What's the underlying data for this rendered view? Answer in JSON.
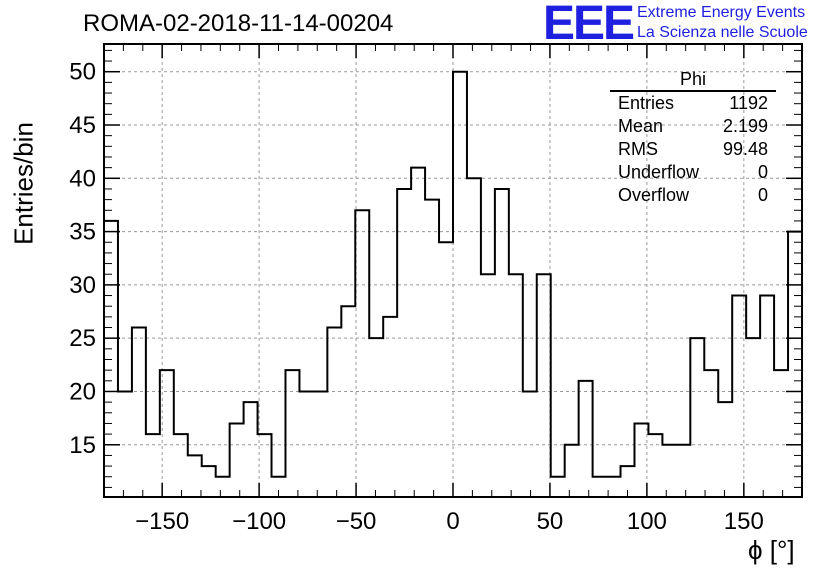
{
  "header": {
    "title": "ROMA-02-2018-11-14-00204",
    "logo_text": "EEE",
    "logo_line1": "Extreme Energy Events",
    "logo_line2": "La Scienza nelle Scuole",
    "logo_color": "#1f1fe0"
  },
  "stats_box": {
    "title": "Phi",
    "rows": [
      {
        "label": "Entries",
        "value": "1192"
      },
      {
        "label": "Mean",
        "value": "2.199"
      },
      {
        "label": "RMS",
        "value": "99.48"
      },
      {
        "label": "Underflow",
        "value": "0"
      },
      {
        "label": "Overflow",
        "value": "0"
      }
    ]
  },
  "chart_data": {
    "type": "histogram",
    "xlabel": "ϕ [°]",
    "ylabel": "Entries/bin",
    "xlim": [
      -180,
      180
    ],
    "ylim": [
      10.1,
      52.6
    ],
    "bin_width": 7.2,
    "bin_edges_start": -180,
    "values": [
      36,
      20,
      26,
      16,
      22,
      16,
      14,
      13,
      12,
      17,
      19,
      16,
      12,
      22,
      20,
      20,
      26,
      28,
      37,
      25,
      27,
      39,
      41,
      38,
      34,
      50,
      40,
      31,
      39,
      31,
      20,
      31,
      12,
      15,
      21,
      12,
      12,
      13,
      17,
      16,
      15,
      15,
      25,
      22,
      19,
      29,
      25,
      29,
      22,
      35
    ],
    "xticks": [
      -150,
      -100,
      -50,
      0,
      50,
      100,
      150
    ],
    "yticks": [
      15,
      20,
      25,
      30,
      35,
      40,
      45,
      50
    ],
    "grid": true,
    "line_color": "#000000"
  }
}
